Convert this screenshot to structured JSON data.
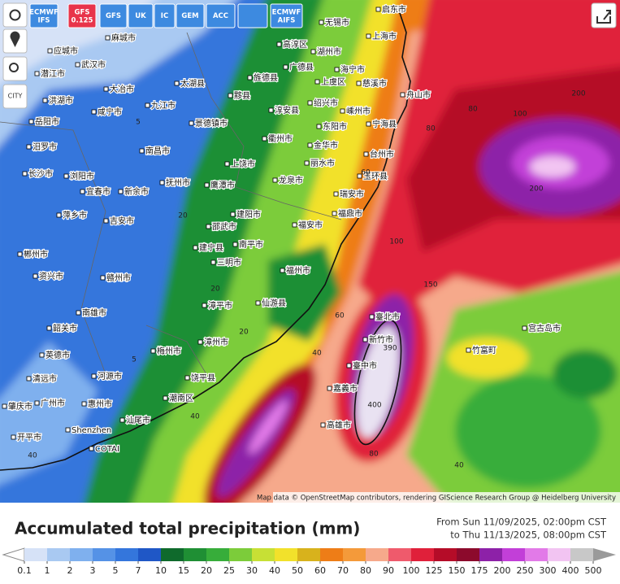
{
  "toolbar": {
    "models": [
      "ECMWF IFS",
      "GFS 0.125",
      "GFS",
      "UK",
      "IC",
      "GEM",
      "ACC",
      "ECMWF AIFS"
    ],
    "active_model": "GFS 0.125",
    "city_button": "CITY"
  },
  "places": [
    "启东市",
    "无锡市",
    "上海市",
    "高淳区",
    "湖州市",
    "广德县",
    "海宁市",
    "上虞区",
    "慈溪市",
    "舟山市",
    "绍兴市",
    "嵊州市",
    "东阳市",
    "宁海县",
    "淳安县",
    "衢州市",
    "金华市",
    "台州市",
    "丽水市",
    "玉环县",
    "龙泉市",
    "瑞安市",
    "上饶市",
    "鹰潭市",
    "福鼎市",
    "建阳市",
    "福安市",
    "邵武市",
    "南平市",
    "建宁县",
    "三明市",
    "福州市",
    "仙游县",
    "漳平市",
    "漳州市",
    "梅州市",
    "饶平县",
    "潮南区",
    "汕尾市",
    "Shenzhen",
    "COTAI",
    "惠州市",
    "广州市",
    "河源市",
    "英德市",
    "清远市",
    "肇庆市",
    "开平市",
    "韶关市",
    "南雄市",
    "赣州市",
    "资兴市",
    "郴州市",
    "吉安市",
    "萍乡市",
    "宜春市",
    "新余市",
    "抚州市",
    "南昌市",
    "浏阳市",
    "长沙市",
    "汨罗市",
    "岳阳市",
    "咸宁市",
    "九江市",
    "景德镇市",
    "旌德县",
    "黟县",
    "太湖县",
    "大冶市",
    "武汉市",
    "潜江市",
    "应城市",
    "洪湖市",
    "麻城市",
    "臺北市",
    "新竹市",
    "臺中市",
    "嘉義市",
    "高雄市",
    "宫古岛市",
    "竹富町"
  ],
  "contour_labels": [
    5,
    5,
    20,
    20,
    20,
    40,
    40,
    40,
    60,
    80,
    80,
    100,
    100,
    150,
    200,
    200,
    390,
    400,
    80,
    60,
    40
  ],
  "attribution": "Map data © OpenStreetMap contributors, rendering GIScience Research Group @ Heidelberg University",
  "legend": {
    "title": "Accumulated total precipitation (mm)",
    "from": "From Sun 11/09/2025, 02:00pm CST",
    "to": "to Thu 11/13/2025, 08:00pm CST",
    "ticks": [
      0.1,
      1,
      2,
      3,
      5,
      7,
      10,
      15,
      20,
      25,
      30,
      40,
      50,
      60,
      70,
      80,
      90,
      100,
      125,
      150,
      175,
      200,
      250,
      300,
      400,
      500
    ],
    "colors": [
      "#d6e2f7",
      "#a9c9f2",
      "#7fb0ee",
      "#5592e6",
      "#3476dc",
      "#1f57c6",
      "#0f6a2c",
      "#1f8f34",
      "#37ad3a",
      "#7ccc3a",
      "#c7e035",
      "#f2e12b",
      "#d8b21c",
      "#ee7d17",
      "#f49a3a",
      "#f6a98b",
      "#ef5a6c",
      "#e0203a",
      "#b50c28",
      "#8c0a2c",
      "#8d21a8",
      "#c23fd8",
      "#e27ae8",
      "#f2c4f2",
      "#c8c8c8"
    ],
    "under_color": "#ffffff",
    "over_color": "#9a9a9a"
  }
}
